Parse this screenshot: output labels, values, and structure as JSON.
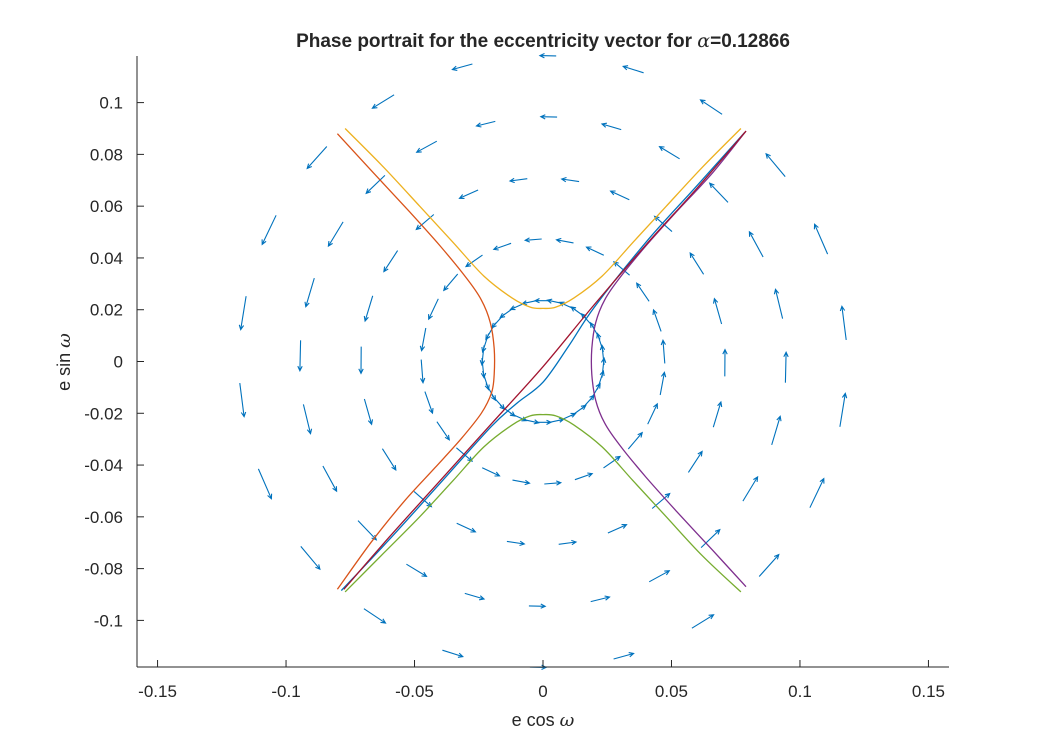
{
  "chart_data": {
    "type": "quiver",
    "title": {
      "prefix": "Phase portrait for the eccentricity vector for ",
      "symbol": "α",
      "suffix": "=0.12866"
    },
    "xlabel": {
      "text": "e cos ",
      "symbol": "ω"
    },
    "ylabel": {
      "text": "e sin ",
      "symbol": "ω"
    },
    "xlim": [
      -0.158,
      0.158
    ],
    "ylim": [
      -0.118,
      0.118
    ],
    "grid": false,
    "box": false,
    "axis_color": "#262626",
    "xticks": [
      {
        "value": -0.15,
        "label": "-0.15"
      },
      {
        "value": -0.1,
        "label": "-0.1"
      },
      {
        "value": -0.05,
        "label": "-0.05"
      },
      {
        "value": 0,
        "label": "0"
      },
      {
        "value": 0.05,
        "label": "0.05"
      },
      {
        "value": 0.1,
        "label": "0.1"
      },
      {
        "value": 0.15,
        "label": "0.15"
      }
    ],
    "yticks": [
      {
        "value": 0.1,
        "label": "0.1"
      },
      {
        "value": 0.08,
        "label": "0.08"
      },
      {
        "value": 0.06,
        "label": "0.06"
      },
      {
        "value": 0.04,
        "label": "0.04"
      },
      {
        "value": 0.02,
        "label": "0.02"
      },
      {
        "value": 0,
        "label": "0"
      },
      {
        "value": -0.02,
        "label": "-0.02"
      },
      {
        "value": -0.04,
        "label": "-0.04"
      },
      {
        "value": -0.06,
        "label": "-0.06"
      },
      {
        "value": -0.08,
        "label": "-0.08"
      },
      {
        "value": -0.1,
        "label": "-0.1"
      }
    ],
    "vector_field": {
      "color": "#0072BD",
      "rings": [
        0.0235,
        0.0472,
        0.0708,
        0.0945,
        0.1181
      ],
      "angle_counts": [
        30,
        24,
        22,
        24,
        22
      ]
    },
    "series": [
      {
        "color": "#D95319",
        "points": [
          [
            -0.08,
            0.088
          ],
          [
            -0.066,
            0.0729
          ],
          [
            -0.052,
            0.0579
          ],
          [
            -0.04,
            0.0446
          ],
          [
            -0.03,
            0.0325
          ],
          [
            -0.024,
            0.0238
          ],
          [
            -0.0205,
            0.015
          ],
          [
            -0.019,
            0.005
          ],
          [
            -0.019,
            -0.005
          ],
          [
            -0.02,
            -0.012
          ],
          [
            -0.024,
            -0.02
          ],
          [
            -0.032,
            -0.03
          ],
          [
            -0.042,
            -0.041
          ],
          [
            -0.054,
            -0.054
          ],
          [
            -0.067,
            -0.07
          ],
          [
            -0.08,
            -0.088
          ]
        ]
      },
      {
        "color": "#EDB120",
        "points": [
          [
            -0.077,
            0.09
          ],
          [
            -0.062,
            0.075
          ],
          [
            -0.048,
            0.06
          ],
          [
            -0.035,
            0.046
          ],
          [
            -0.023,
            0.033
          ],
          [
            -0.012,
            0.0245
          ],
          [
            -0.005,
            0.021
          ],
          [
            0.0,
            0.0205
          ],
          [
            0.005,
            0.021
          ],
          [
            0.012,
            0.0245
          ],
          [
            0.023,
            0.033
          ],
          [
            0.035,
            0.046
          ],
          [
            0.048,
            0.06
          ],
          [
            0.062,
            0.075
          ],
          [
            0.077,
            0.09
          ]
        ]
      },
      {
        "color": "#7E2F8E",
        "points": [
          [
            0.079,
            0.089
          ],
          [
            0.066,
            0.0729
          ],
          [
            0.052,
            0.0579
          ],
          [
            0.04,
            0.0446
          ],
          [
            0.03,
            0.0325
          ],
          [
            0.024,
            0.0238
          ],
          [
            0.0205,
            0.015
          ],
          [
            0.019,
            0.005
          ],
          [
            0.019,
            -0.005
          ],
          [
            0.0205,
            -0.015
          ],
          [
            0.024,
            -0.0238
          ],
          [
            0.03,
            -0.0325
          ],
          [
            0.04,
            -0.0446
          ],
          [
            0.052,
            -0.0579
          ],
          [
            0.066,
            -0.0729
          ],
          [
            0.079,
            -0.087
          ]
        ]
      },
      {
        "color": "#77AC30",
        "points": [
          [
            -0.077,
            -0.089
          ],
          [
            -0.062,
            -0.074
          ],
          [
            -0.048,
            -0.06
          ],
          [
            -0.035,
            -0.046
          ],
          [
            -0.023,
            -0.033
          ],
          [
            -0.012,
            -0.0245
          ],
          [
            -0.005,
            -0.021
          ],
          [
            0.0,
            -0.0205
          ],
          [
            0.005,
            -0.021
          ],
          [
            0.012,
            -0.0245
          ],
          [
            0.023,
            -0.033
          ],
          [
            0.035,
            -0.046
          ],
          [
            0.048,
            -0.06
          ],
          [
            0.062,
            -0.075
          ],
          [
            0.077,
            -0.089
          ]
        ]
      },
      {
        "color": "#0072BD",
        "points": [
          [
            -0.0785,
            -0.0885
          ],
          [
            -0.06,
            -0.069
          ],
          [
            -0.04,
            -0.047
          ],
          [
            -0.02,
            -0.025
          ],
          [
            -0.01,
            -0.016
          ],
          [
            0.0,
            -0.008
          ],
          [
            0.01,
            0.006
          ],
          [
            0.02,
            0.021
          ],
          [
            0.04,
            0.046
          ],
          [
            0.06,
            0.068
          ],
          [
            0.0785,
            0.0885
          ]
        ]
      },
      {
        "color": "#A2142F",
        "points": [
          [
            -0.0775,
            -0.088
          ],
          [
            -0.06,
            -0.068
          ],
          [
            -0.04,
            -0.046
          ],
          [
            -0.02,
            -0.024
          ],
          [
            0.0,
            -0.002
          ],
          [
            0.02,
            0.022
          ],
          [
            0.04,
            0.045
          ],
          [
            0.06,
            0.067
          ],
          [
            0.079,
            0.089
          ]
        ]
      }
    ]
  }
}
